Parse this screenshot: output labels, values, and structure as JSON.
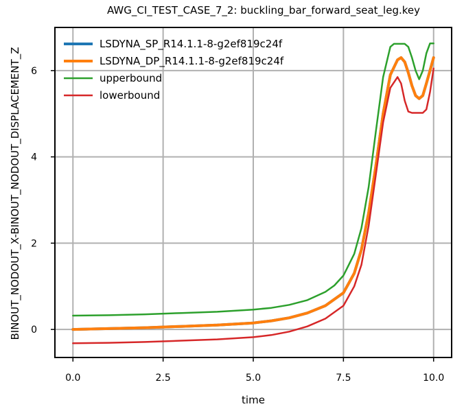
{
  "chart_data": {
    "type": "line",
    "title": "AWG_CI_TEST_CASE_7_2: buckling_bar_forward_seat_leg.key",
    "xlabel": "time",
    "ylabel": "BINOUT_NODOUT_X-BINOUT_NODOUT_DISPLACEMENT_Z",
    "xlim": [
      -0.5,
      10.5
    ],
    "ylim": [
      -0.65,
      7.0
    ],
    "xticks": [
      "0.0",
      "2.5",
      "5.0",
      "7.5",
      "10.0"
    ],
    "xtick_values": [
      0,
      2.5,
      5,
      7.5,
      10
    ],
    "yticks": [
      "0",
      "2",
      "4",
      "6"
    ],
    "ytick_values": [
      0,
      2,
      4,
      6
    ],
    "grid": true,
    "legend_position": "top-left",
    "series": [
      {
        "name": "LSDYNA_SP_R14.1.1-8-g2ef819c24f",
        "color": "#1f77b4",
        "x": [
          0,
          1,
          2,
          3,
          4,
          5,
          5.5,
          6,
          6.5,
          7,
          7.5,
          7.8,
          8,
          8.2,
          8.4,
          8.6,
          8.8,
          9,
          9.1,
          9.2,
          9.3,
          9.4,
          9.5,
          9.6,
          9.7,
          9.8,
          9.9,
          10
        ],
        "y": [
          0.0,
          0.02,
          0.04,
          0.07,
          0.1,
          0.15,
          0.2,
          0.27,
          0.38,
          0.55,
          0.85,
          1.3,
          1.85,
          2.7,
          3.8,
          5.0,
          5.9,
          6.25,
          6.3,
          6.2,
          5.95,
          5.65,
          5.42,
          5.35,
          5.42,
          5.7,
          6.0,
          6.3
        ]
      },
      {
        "name": "LSDYNA_DP_R14.1.1-8-g2ef819c24f",
        "color": "#ff7f0e",
        "x": [
          0,
          1,
          2,
          3,
          4,
          5,
          5.5,
          6,
          6.5,
          7,
          7.5,
          7.8,
          8,
          8.2,
          8.4,
          8.6,
          8.8,
          9,
          9.1,
          9.2,
          9.3,
          9.4,
          9.5,
          9.6,
          9.7,
          9.8,
          9.9,
          10
        ],
        "y": [
          0.0,
          0.02,
          0.04,
          0.07,
          0.1,
          0.15,
          0.2,
          0.27,
          0.38,
          0.55,
          0.85,
          1.3,
          1.85,
          2.7,
          3.8,
          5.0,
          5.9,
          6.25,
          6.3,
          6.2,
          5.95,
          5.65,
          5.42,
          5.35,
          5.42,
          5.7,
          6.0,
          6.3
        ]
      },
      {
        "name": "upperbound",
        "color": "#2ca02c",
        "x": [
          0,
          1,
          2,
          3,
          4,
          5,
          5.5,
          6,
          6.5,
          7,
          7.25,
          7.5,
          7.8,
          8,
          8.2,
          8.4,
          8.6,
          8.8,
          8.9,
          9.0,
          9.2,
          9.3,
          9.4,
          9.5,
          9.6,
          9.7,
          9.8,
          9.9,
          10
        ],
        "y": [
          0.32,
          0.33,
          0.35,
          0.38,
          0.41,
          0.46,
          0.5,
          0.57,
          0.68,
          0.87,
          1.02,
          1.25,
          1.75,
          2.35,
          3.3,
          4.6,
          5.85,
          6.55,
          6.62,
          6.62,
          6.62,
          6.55,
          6.3,
          6.0,
          5.8,
          6.0,
          6.4,
          6.63,
          6.63
        ]
      },
      {
        "name": "lowerbound",
        "color": "#d62728",
        "x": [
          0,
          1,
          2,
          3,
          4,
          5,
          5.5,
          6,
          6.5,
          7,
          7.5,
          7.8,
          8,
          8.2,
          8.4,
          8.6,
          8.8,
          9.0,
          9.1,
          9.2,
          9.3,
          9.4,
          9.5,
          9.6,
          9.7,
          9.8,
          9.9,
          10
        ],
        "y": [
          -0.32,
          -0.31,
          -0.29,
          -0.26,
          -0.23,
          -0.18,
          -0.13,
          -0.05,
          0.07,
          0.25,
          0.55,
          1.0,
          1.5,
          2.4,
          3.6,
          4.8,
          5.6,
          5.85,
          5.7,
          5.3,
          5.05,
          5.02,
          5.02,
          5.02,
          5.02,
          5.1,
          5.5,
          6.05
        ]
      }
    ]
  }
}
